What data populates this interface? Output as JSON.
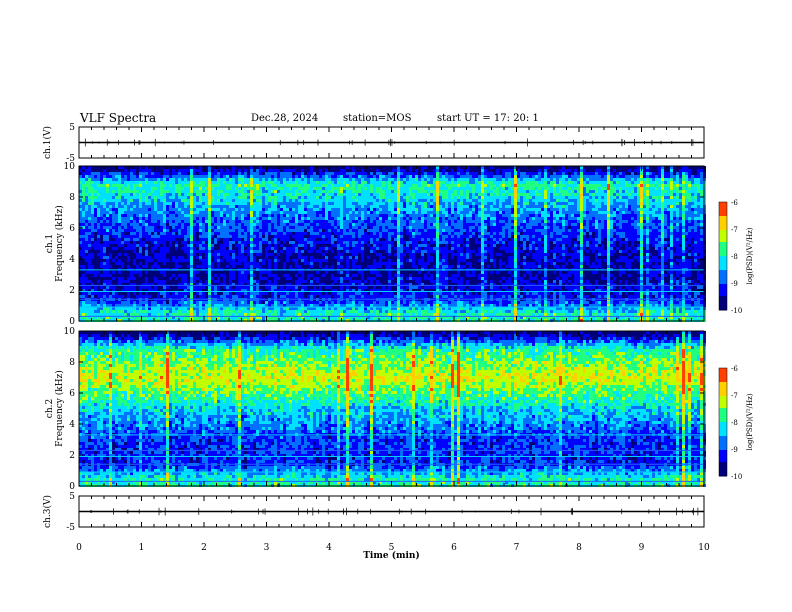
{
  "header": {
    "title": "VLF Spectra",
    "date": "Dec.28, 2024",
    "station": "station=MOS",
    "start_ut": "start UT =   17: 20: 1"
  },
  "colors": {
    "colormap": [
      "#00007a",
      "#0000ff",
      "#0070ff",
      "#00e0ff",
      "#20ff80",
      "#c0ff00",
      "#ffd000",
      "#ff4000",
      "#ff2a2a",
      "#ffffff"
    ]
  },
  "chart_data": [
    {
      "type": "line",
      "panel": "ch.1(V)",
      "ylabel": "ch.1(V)",
      "ylim": [
        -5,
        5
      ],
      "yticks": [
        "5",
        "-5"
      ],
      "x": [
        0,
        10
      ],
      "values": [
        0,
        0
      ],
      "xlim": [
        0,
        10
      ]
    },
    {
      "type": "heatmap",
      "panel": "ch.1 spectrogram",
      "ylabel": "ch.1 Frequency (kHz)",
      "ylim": [
        0,
        10
      ],
      "yticks": [
        "0",
        "2",
        "4",
        "6",
        "8",
        "10"
      ],
      "xlim": [
        0,
        10
      ],
      "colorbar": {
        "label": "log(PSD)(V²/Hz)",
        "ticks": [
          "-6",
          "-7",
          "-8",
          "-9",
          "-10"
        ],
        "range": [
          -10,
          -6
        ]
      },
      "band_centers_khz": [
        0.5,
        1.5,
        3.0,
        5.0,
        7.0,
        8.8
      ],
      "band_levels_log": [
        -8.0,
        -9.2,
        -9.6,
        -9.3,
        -8.7,
        -7.9
      ]
    },
    {
      "type": "heatmap",
      "panel": "ch.2 spectrogram",
      "ylabel": "ch.2 Frequency (kHz)",
      "ylim": [
        0,
        10
      ],
      "yticks": [
        "0",
        "2",
        "4",
        "6",
        "8",
        "10"
      ],
      "xlim": [
        0,
        10
      ],
      "colorbar": {
        "label": "log(PSD)(V²/Hz)",
        "ticks": [
          "-6",
          "-7",
          "-8",
          "-9",
          "-10"
        ],
        "range": [
          -10,
          -6
        ]
      },
      "band_centers_khz": [
        0.5,
        1.5,
        3.0,
        5.0,
        7.0,
        8.8
      ],
      "band_levels_log": [
        -8.0,
        -9.2,
        -9.1,
        -8.3,
        -7.1,
        -7.9
      ]
    },
    {
      "type": "line",
      "panel": "ch.3(V)",
      "ylabel": "ch.3(V)",
      "ylim": [
        -5,
        5
      ],
      "yticks": [
        "5",
        "-5"
      ],
      "x": [
        0,
        10
      ],
      "values": [
        0,
        0
      ],
      "xlim": [
        0,
        10
      ],
      "xlabel": "Time (min)",
      "xticks": [
        "0",
        "1",
        "2",
        "3",
        "4",
        "5",
        "6",
        "7",
        "8",
        "9",
        "10"
      ]
    }
  ]
}
